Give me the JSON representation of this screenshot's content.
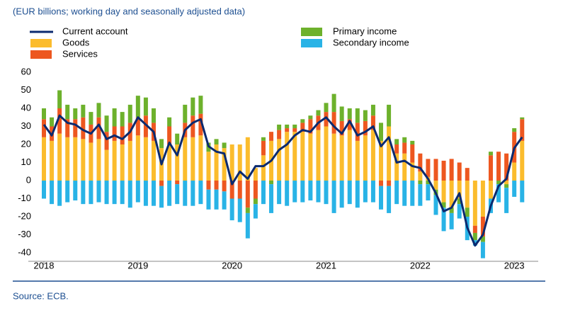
{
  "chart_data": {
    "type": "bar",
    "subtitle": "(EUR billions; working day and seasonally adjusted data)",
    "source": "Source: ECB.",
    "categories": [
      "2018",
      null,
      null,
      null,
      null,
      null,
      null,
      null,
      null,
      null,
      null,
      null,
      "2019",
      null,
      null,
      null,
      null,
      null,
      null,
      null,
      null,
      null,
      null,
      null,
      "2020",
      null,
      null,
      null,
      null,
      null,
      null,
      null,
      null,
      null,
      null,
      null,
      "2021",
      null,
      null,
      null,
      null,
      null,
      null,
      null,
      null,
      null,
      null,
      null,
      "2022",
      null,
      null,
      null,
      null,
      null,
      null,
      null,
      null,
      null,
      null,
      null,
      "2023",
      null
    ],
    "ylim": [
      -40,
      60
    ],
    "yticks": [
      -40,
      -30,
      -20,
      -10,
      0,
      10,
      20,
      30,
      40,
      50,
      60
    ],
    "series": [
      {
        "name": "Current account",
        "kind": "line",
        "color": "#0b2a6f",
        "values": [
          31,
          25,
          36,
          32,
          31,
          28,
          26,
          31,
          23,
          25,
          23,
          27,
          35,
          31,
          27,
          9,
          21,
          14,
          28,
          32,
          34,
          19,
          16,
          15,
          -2,
          5,
          1,
          8,
          8,
          11,
          17,
          20,
          25,
          28,
          27,
          32,
          35,
          30,
          26,
          33,
          25,
          27,
          30,
          19,
          24,
          10,
          11,
          8,
          7,
          1,
          -7,
          -17,
          -15,
          -7,
          -26,
          -36,
          -30,
          -14,
          -3,
          1,
          18,
          24
        ]
      },
      {
        "name": "Goods",
        "kind": "bar",
        "color": "#fbbc2d",
        "values": [
          24,
          22,
          26,
          24,
          24,
          23,
          21,
          23,
          17,
          22,
          20,
          22,
          25,
          24,
          22,
          18,
          20,
          20,
          24,
          24,
          25,
          16,
          20,
          18,
          20,
          20,
          24,
          7,
          14,
          22,
          23,
          27,
          27,
          27,
          26,
          28,
          30,
          26,
          25,
          28,
          22,
          25,
          28,
          22,
          30,
          15,
          15,
          10,
          5,
          2,
          -5,
          -12,
          -15,
          -10,
          -15,
          -25,
          -20,
          -10,
          0,
          -2,
          10,
          22
        ]
      },
      {
        "name": "Services",
        "kind": "bar",
        "color": "#ed5720",
        "values": [
          10,
          8,
          14,
          10,
          10,
          12,
          10,
          12,
          10,
          8,
          10,
          10,
          10,
          12,
          10,
          -3,
          10,
          -2,
          8,
          12,
          12,
          -5,
          -5,
          -6,
          -10,
          -10,
          -15,
          -10,
          8,
          5,
          5,
          2,
          2,
          5,
          8,
          8,
          8,
          12,
          8,
          6,
          10,
          8,
          8,
          -3,
          -3,
          5,
          6,
          10,
          10,
          10,
          12,
          11,
          12,
          10,
          7,
          -4,
          -11,
          14,
          16,
          15,
          17,
          12
        ]
      },
      {
        "name": "Primary income",
        "kind": "bar",
        "color": "#6db12c",
        "values": [
          6,
          5,
          10,
          8,
          6,
          7,
          7,
          8,
          9,
          10,
          8,
          10,
          12,
          10,
          8,
          5,
          5,
          6,
          10,
          10,
          10,
          5,
          3,
          3,
          0,
          0,
          -3,
          -3,
          2,
          -2,
          3,
          2,
          2,
          2,
          2,
          3,
          5,
          10,
          8,
          6,
          8,
          6,
          6,
          10,
          12,
          3,
          3,
          2,
          -2,
          -2,
          -3,
          -3,
          -3,
          -3,
          -5,
          -4,
          -3,
          2,
          -2,
          -2,
          2,
          1
        ]
      },
      {
        "name": "Secondary income",
        "kind": "bar",
        "color": "#29b3e6",
        "values": [
          -10,
          -13,
          -14,
          -12,
          -11,
          -13,
          -13,
          -12,
          -13,
          -13,
          -13,
          -15,
          -12,
          -14,
          -14,
          -12,
          -14,
          -11,
          -14,
          -14,
          -13,
          -11,
          -11,
          -10,
          -12,
          -13,
          -14,
          -8,
          -13,
          -16,
          -13,
          -14,
          -12,
          -12,
          -11,
          -12,
          -13,
          -18,
          -15,
          -13,
          -15,
          -12,
          -12,
          -13,
          -15,
          -13,
          -14,
          -14,
          -12,
          -9,
          -11,
          -13,
          -9,
          -8,
          -13,
          -3,
          -9,
          -8,
          -10,
          -14,
          -9,
          -12
        ]
      }
    ]
  }
}
